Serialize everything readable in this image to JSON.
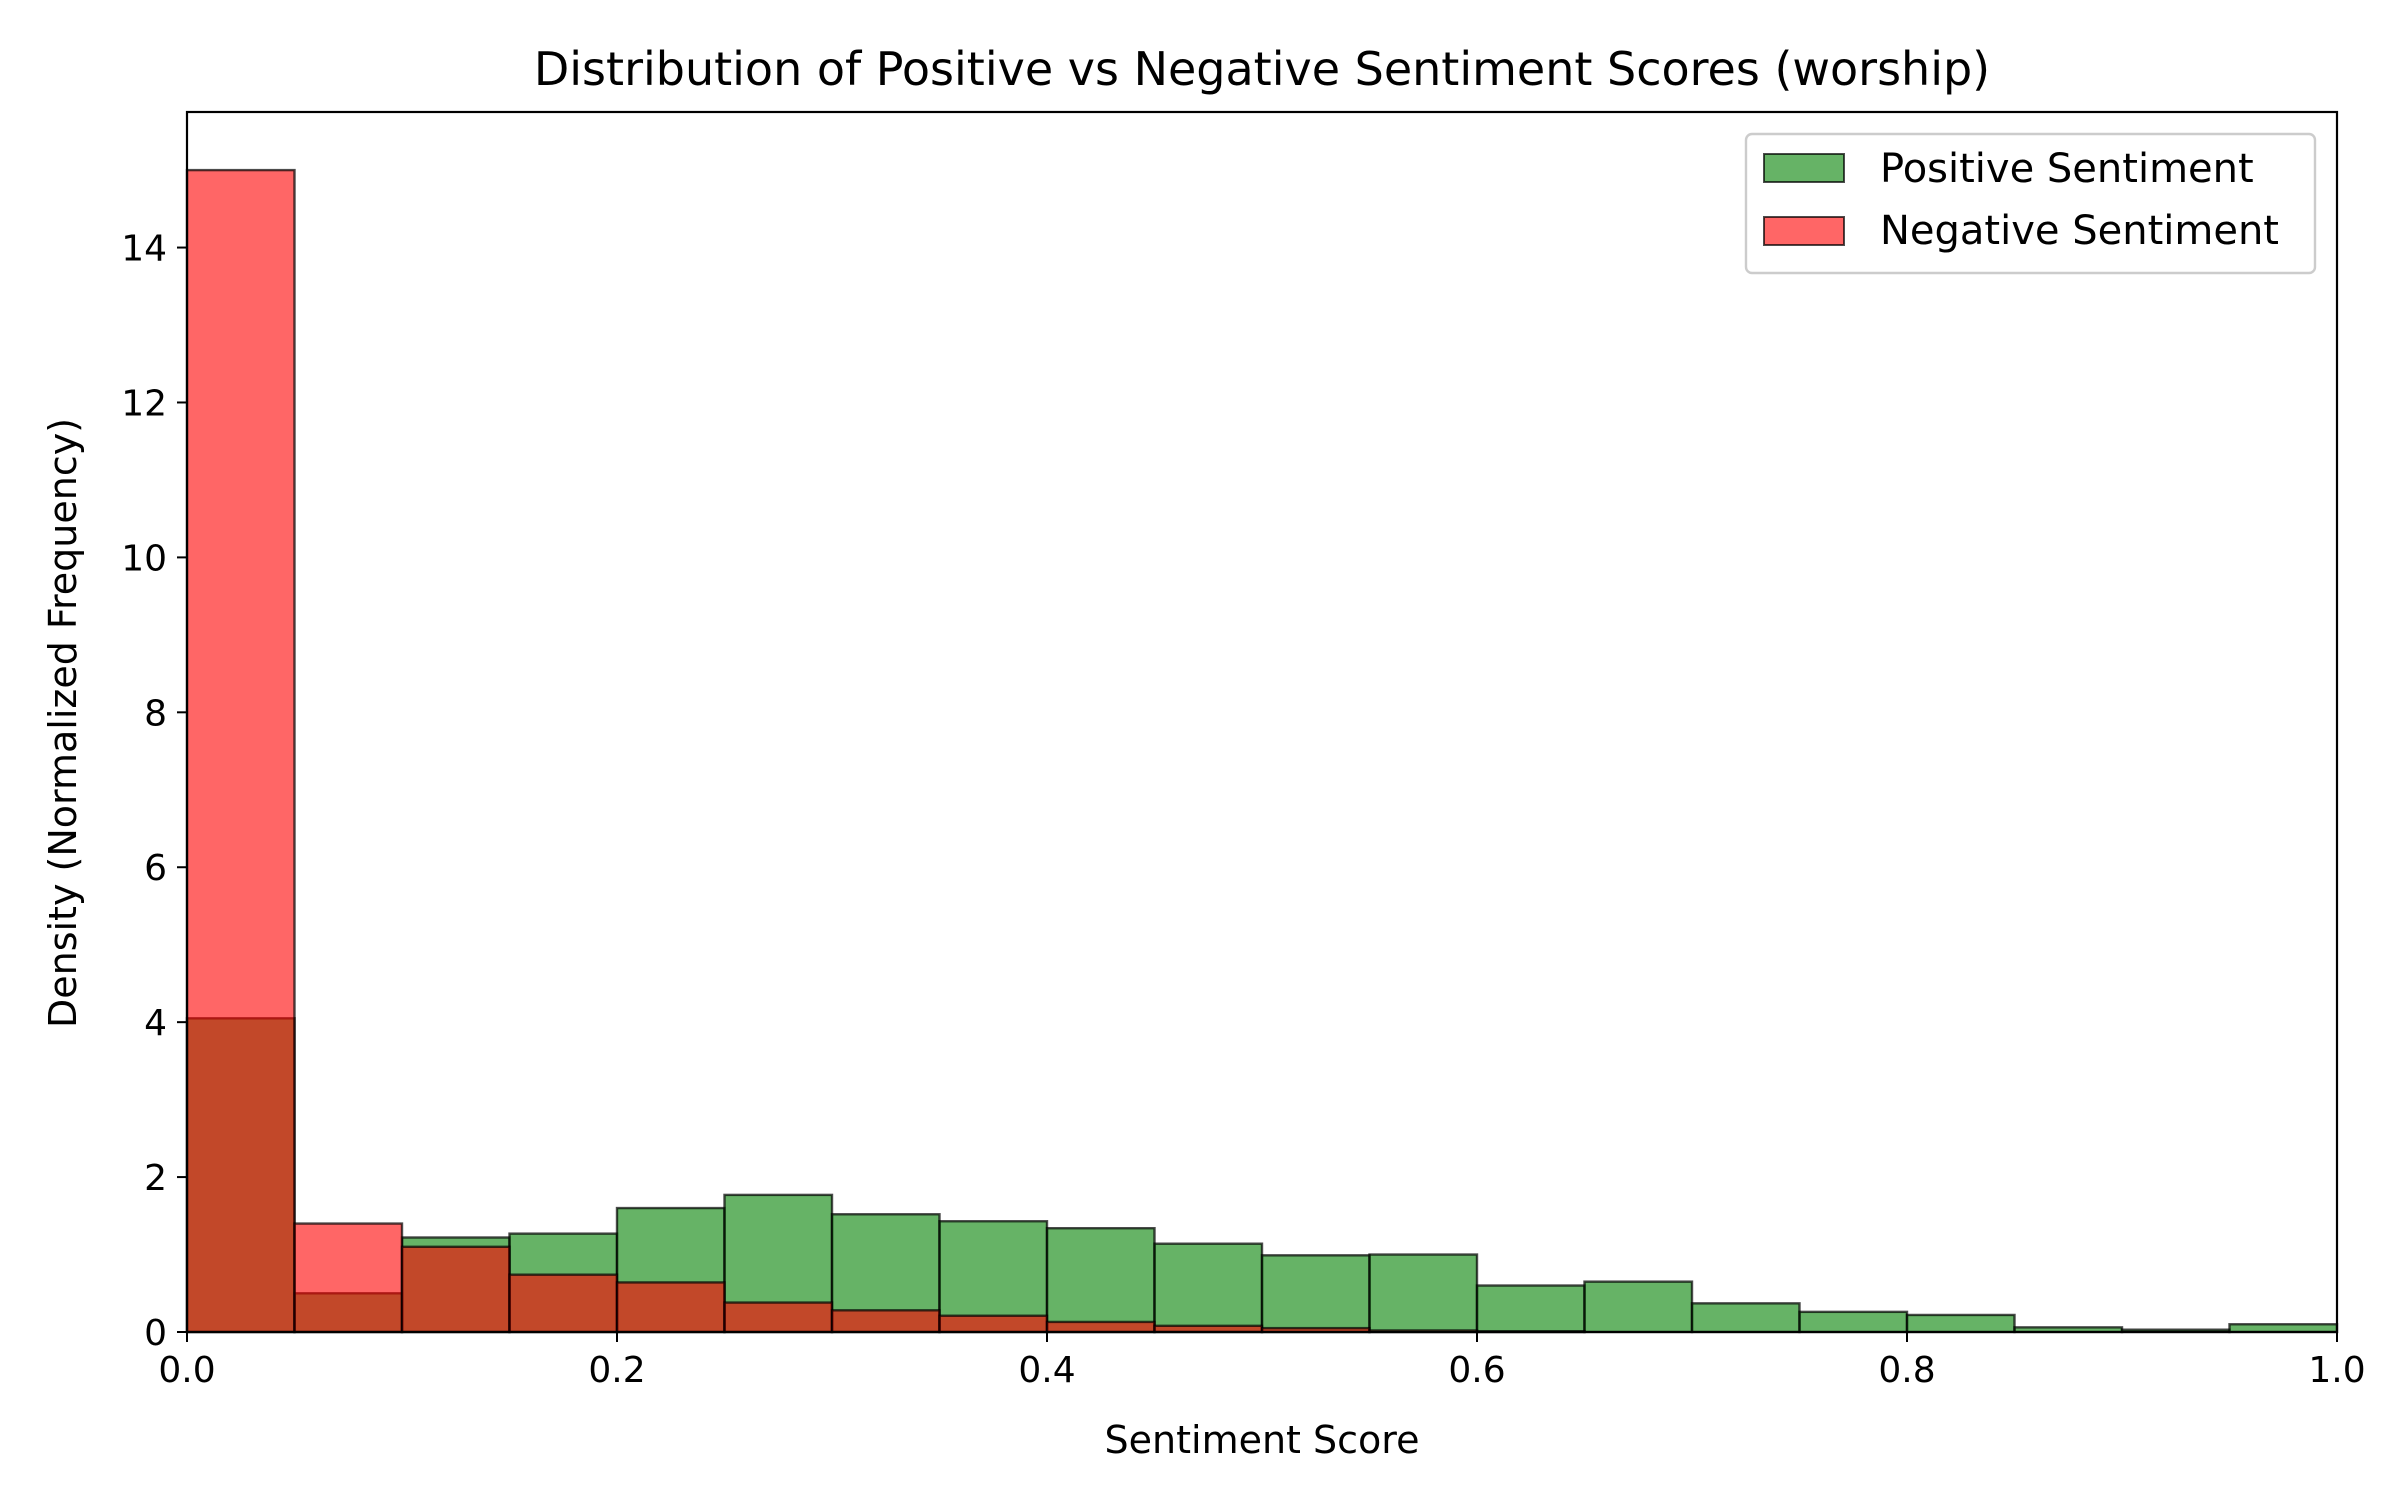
{
  "chart_data": {
    "type": "histogram",
    "title": "Distribution of Positive vs Negative Sentiment Scores (worship)",
    "xlabel": "Sentiment Score",
    "ylabel": "Density (Normalized Frequency)",
    "xlim": [
      0.0,
      1.0
    ],
    "ylim": [
      0,
      15.75
    ],
    "xticks": [
      "0.0",
      "0.2",
      "0.4",
      "0.6",
      "0.8",
      "1.0"
    ],
    "xtick_values": [
      0.0,
      0.2,
      0.4,
      0.6,
      0.8,
      1.0
    ],
    "yticks": [
      "0",
      "2",
      "4",
      "6",
      "8",
      "10",
      "12",
      "14"
    ],
    "ytick_values": [
      0,
      2,
      4,
      6,
      8,
      10,
      12,
      14
    ],
    "grid": false,
    "legend_position": "top-right",
    "bin_edges": [
      0.0,
      0.05,
      0.1,
      0.15,
      0.2,
      0.25,
      0.3,
      0.35,
      0.4,
      0.45,
      0.5,
      0.55,
      0.6,
      0.65,
      0.7,
      0.75,
      0.8,
      0.85,
      0.9,
      0.95,
      1.0
    ],
    "series": [
      {
        "name": "Positive Sentiment",
        "color": "#008000",
        "alpha": 0.6,
        "values": [
          4.05,
          0.5,
          1.22,
          1.27,
          1.6,
          1.77,
          1.52,
          1.43,
          1.34,
          1.14,
          0.99,
          1.0,
          0.6,
          0.65,
          0.37,
          0.26,
          0.22,
          0.06,
          0.03,
          0.1
        ]
      },
      {
        "name": "Negative Sentiment",
        "color": "#ff0000",
        "alpha": 0.6,
        "values": [
          15.0,
          1.4,
          1.1,
          0.74,
          0.64,
          0.38,
          0.28,
          0.21,
          0.13,
          0.08,
          0.05,
          0.02,
          0.01,
          0.0,
          0.0,
          0.0,
          0.0,
          0.0,
          0.0,
          0.0
        ]
      }
    ]
  }
}
